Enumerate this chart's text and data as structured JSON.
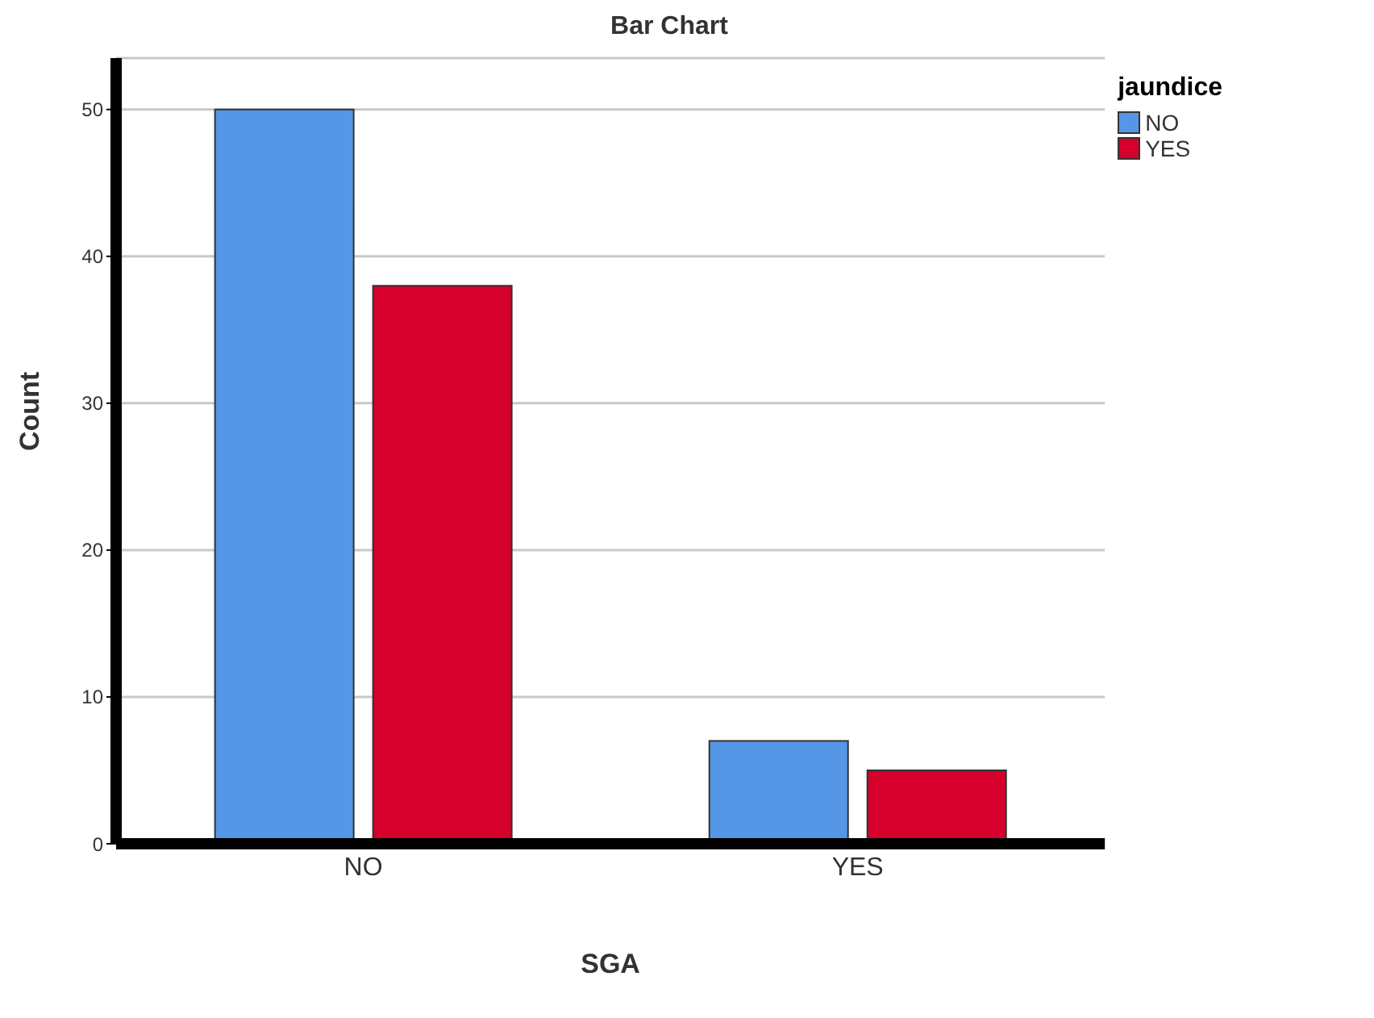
{
  "chart_data": {
    "type": "bar",
    "title": "Bar Chart",
    "xlabel": "SGA",
    "ylabel": "Count",
    "legend_title": "jaundice",
    "categories": [
      "NO",
      "YES"
    ],
    "series": [
      {
        "name": "NO",
        "color": "#5596e6",
        "values": [
          50,
          7
        ]
      },
      {
        "name": "YES",
        "color": "#d5002b",
        "values": [
          38,
          5
        ]
      }
    ],
    "ylim": [
      0,
      53.5
    ],
    "yticks": [
      0,
      10,
      20,
      30,
      40,
      50
    ],
    "grid": "y",
    "legend": "top right"
  }
}
